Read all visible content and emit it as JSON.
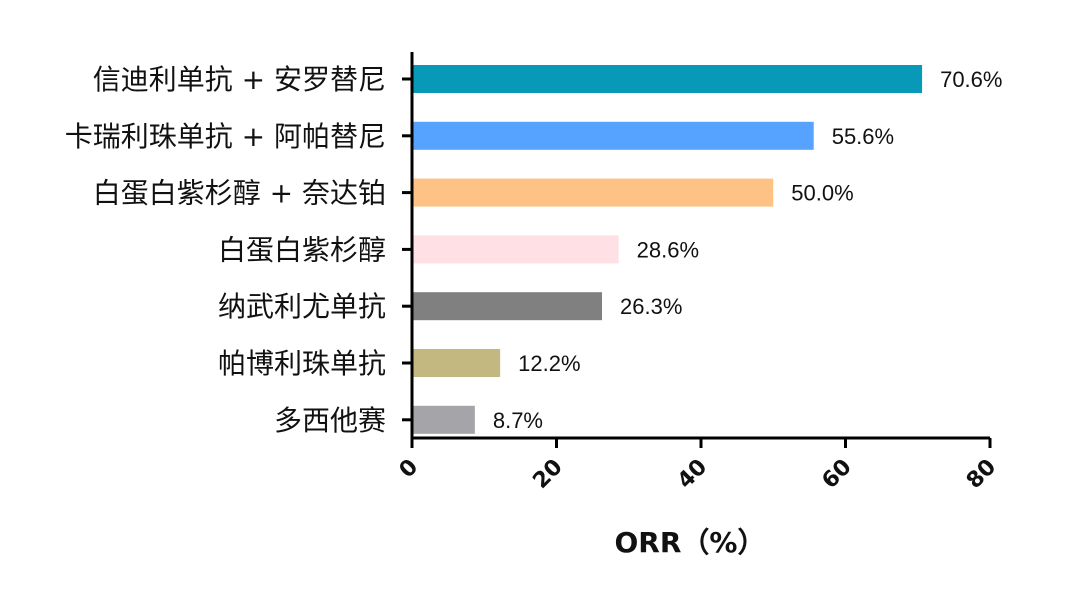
{
  "chart_data": {
    "type": "bar",
    "orientation": "horizontal",
    "categories": [
      "信迪利单抗 + 安罗替尼",
      "卡瑞利珠单抗 + 阿帕替尼",
      "白蛋白紫杉醇 + 奈达铂",
      "白蛋白紫杉醇",
      "纳武利尤单抗",
      "帕博利珠单抗",
      "多西他赛"
    ],
    "values": [
      70.6,
      55.6,
      50.0,
      28.6,
      26.3,
      12.2,
      8.7
    ],
    "value_labels": [
      "70.6%",
      "55.6%",
      "50.0%",
      "28.6%",
      "26.3%",
      "12.2%",
      "8.7%"
    ],
    "colors": [
      "#0899b8",
      "#56a3ff",
      "#ffc285",
      "#ffe0e4",
      "#808080",
      "#c2b880",
      "#a5a5a9"
    ],
    "xlabel": "ORR（%）",
    "xlim": [
      0,
      80
    ],
    "xticks": [
      0,
      20,
      40,
      60,
      80
    ],
    "tick_label_rotation": -45,
    "grid": false,
    "legend": "none"
  }
}
